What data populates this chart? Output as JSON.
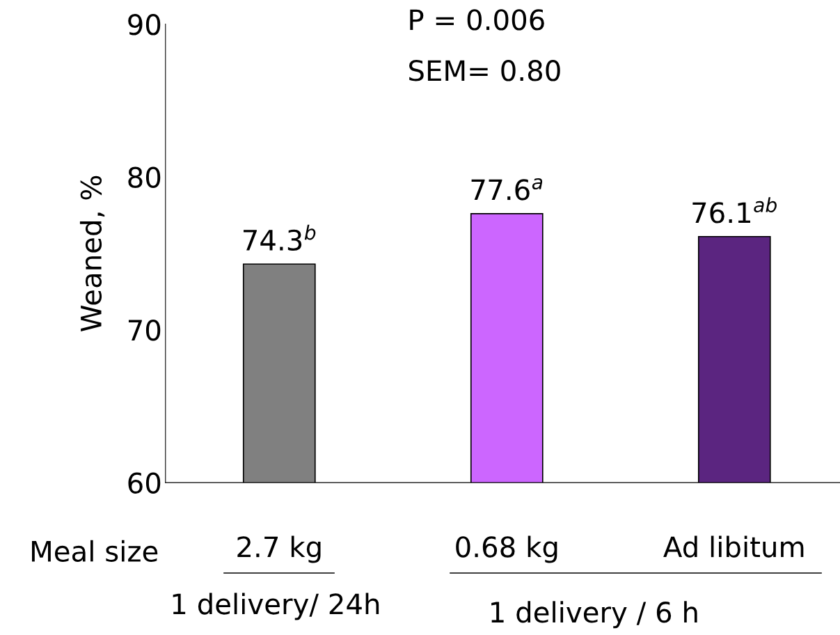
{
  "chart_data": {
    "type": "bar",
    "ylabel": "Weaned, %",
    "categories": [
      "2.7 kg",
      "0.68 kg",
      "Ad libitum"
    ],
    "values": [
      74.3,
      77.6,
      76.1
    ],
    "colors": [
      "#808080",
      "#cc66ff",
      "#5b2580"
    ],
    "value_labels": [
      "74.3$^{b}$",
      "77.6$^{a}$",
      "76.1$^{ab}$"
    ],
    "ylim": [
      60,
      90
    ],
    "yticks": [
      60,
      70,
      80,
      90
    ],
    "grid": false,
    "legend": false,
    "annotations": [
      "P = 0.006",
      "SEM= 0.80",
      "Meal size",
      "1 delivery/ 24h",
      "1 delivery / 6 h"
    ]
  }
}
